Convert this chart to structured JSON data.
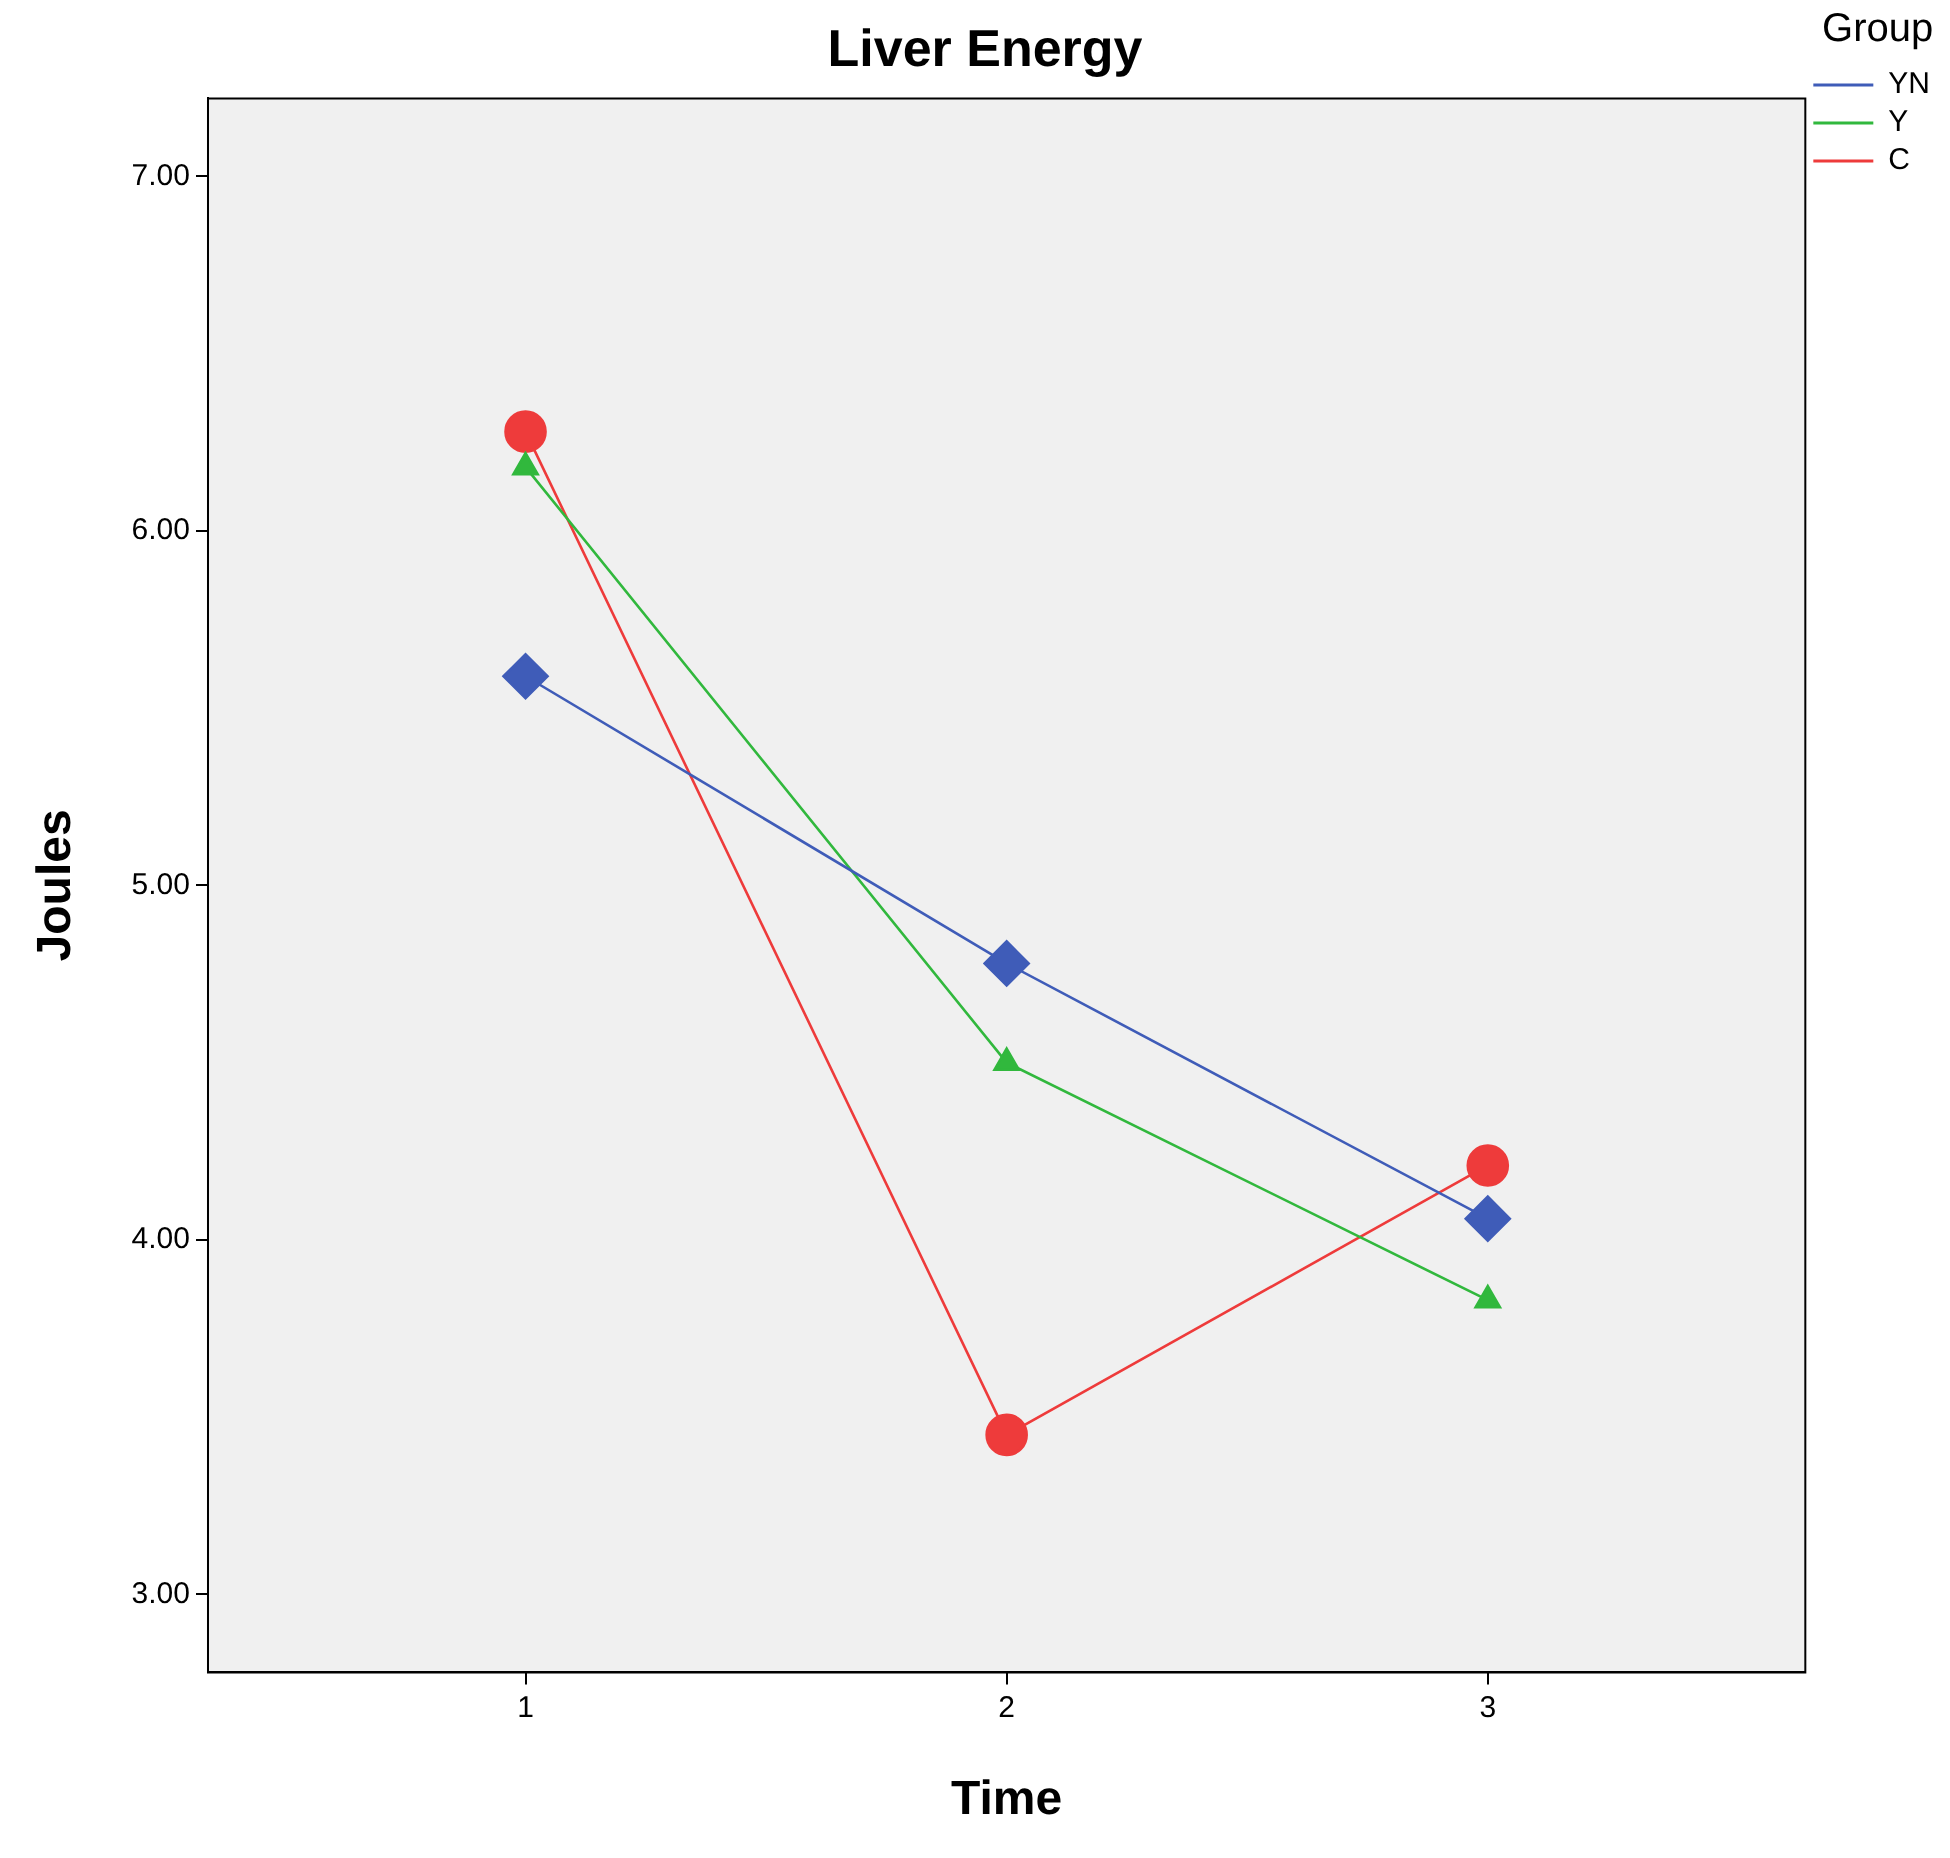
{
  "chart_data": {
    "type": "line",
    "title": "Liver Energy",
    "xlabel": "Time",
    "ylabel": "Joules",
    "legend_title": "Group",
    "legend": "top right",
    "x": [
      1,
      2,
      3
    ],
    "xlim": [
      0.34,
      3.66
    ],
    "xticks": [
      1,
      2,
      3
    ],
    "ylim": [
      2.78,
      7.22
    ],
    "yticks": [
      {
        "value": 3,
        "label": "3.00"
      },
      {
        "value": 4,
        "label": "4.00"
      },
      {
        "value": 5,
        "label": "5.00"
      },
      {
        "value": 6,
        "label": "6.00"
      },
      {
        "value": 7,
        "label": "7.00"
      }
    ],
    "grid": false,
    "series": [
      {
        "name": "YN",
        "color": "#3f5cb8",
        "marker": "diamond",
        "values": [
          5.59,
          4.78,
          4.06
        ]
      },
      {
        "name": "Y",
        "color": "#31b83d",
        "marker": "triangle",
        "values": [
          6.18,
          4.5,
          3.83
        ]
      },
      {
        "name": "C",
        "color": "#ee3b3b",
        "marker": "circle",
        "values": [
          6.28,
          3.45,
          4.21
        ]
      }
    ]
  }
}
